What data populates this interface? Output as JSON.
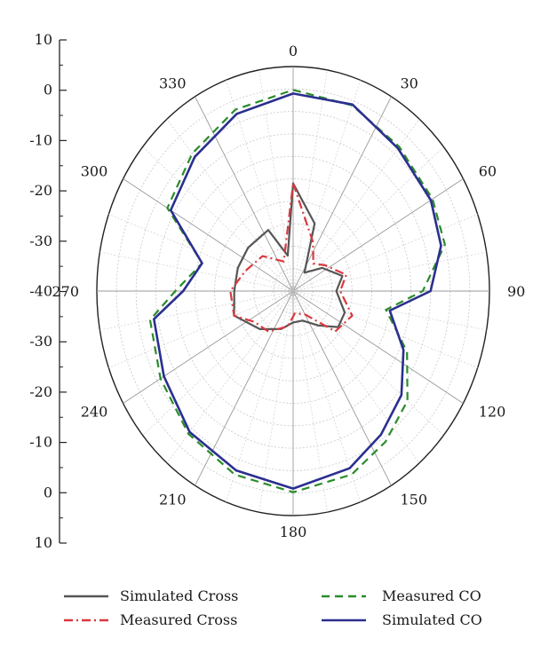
{
  "chart_data": {
    "type": "polar-line",
    "radial_axis": {
      "min": -40,
      "max": 10,
      "ticks": [
        10,
        0,
        -10,
        -20,
        -30,
        -40,
        -30,
        -20,
        -10,
        0,
        10
      ],
      "tick_labels": [
        "10",
        "0",
        "-10",
        "-20",
        "-30",
        "-40",
        "-30",
        "-20",
        "-10",
        "0",
        "10"
      ]
    },
    "angle_labels": [
      "0",
      "30",
      "60",
      "90",
      "120",
      "150",
      "180",
      "210",
      "240",
      "270",
      "300",
      "330"
    ],
    "angle_values": [
      0,
      30,
      60,
      90,
      120,
      150,
      180,
      210,
      240,
      270,
      300,
      330
    ],
    "grid": true,
    "legend_position": "bottom",
    "series": [
      {
        "name": "Simulated Cross",
        "color": "#555555",
        "dash": "solid",
        "points": [
          [
            0,
            -16
          ],
          [
            20,
            -24
          ],
          [
            35,
            -35
          ],
          [
            55,
            -31
          ],
          [
            75,
            -27
          ],
          [
            90,
            -29
          ],
          [
            110,
            -26
          ],
          [
            125,
            -26
          ],
          [
            140,
            -30
          ],
          [
            160,
            -33
          ],
          [
            180,
            -33
          ],
          [
            200,
            -31
          ],
          [
            225,
            -28
          ],
          [
            250,
            -24
          ],
          [
            270,
            -25
          ],
          [
            290,
            -25
          ],
          [
            310,
            -25
          ],
          [
            335,
            -25
          ],
          [
            350,
            -32
          ],
          [
            360,
            -16
          ]
        ]
      },
      {
        "name": "Measured Cross",
        "color": "#d9393e",
        "dash": "dashdot",
        "points": [
          [
            0,
            -16
          ],
          [
            25,
            -28
          ],
          [
            40,
            -32
          ],
          [
            55,
            -30
          ],
          [
            75,
            -26
          ],
          [
            90,
            -28
          ],
          [
            110,
            -24
          ],
          [
            130,
            -26
          ],
          [
            150,
            -34
          ],
          [
            175,
            -35
          ],
          [
            190,
            -32
          ],
          [
            215,
            -29
          ],
          [
            235,
            -28
          ],
          [
            250,
            -24
          ],
          [
            270,
            -24
          ],
          [
            290,
            -27
          ],
          [
            315,
            -29
          ],
          [
            340,
            -33
          ],
          [
            360,
            -16
          ]
        ]
      },
      {
        "name": "Measured CO",
        "color": "#2a8c2a",
        "dash": "dashed",
        "points": [
          [
            0,
            4.8
          ],
          [
            20,
            4
          ],
          [
            40,
            2
          ],
          [
            60,
            1
          ],
          [
            75,
            0
          ],
          [
            90,
            -7
          ],
          [
            100,
            -16
          ],
          [
            115,
            -8
          ],
          [
            130,
            -2
          ],
          [
            145,
            1
          ],
          [
            160,
            3.5
          ],
          [
            180,
            4.8
          ],
          [
            200,
            3.5
          ],
          [
            220,
            1.5
          ],
          [
            240,
            -1
          ],
          [
            260,
            -3
          ],
          [
            270,
            -10
          ],
          [
            285,
            -16
          ],
          [
            300,
            -3
          ],
          [
            320,
            0
          ],
          [
            340,
            3
          ],
          [
            360,
            4.8
          ]
        ]
      },
      {
        "name": "Simulated CO",
        "color": "#2b2f8f",
        "dash": "solid",
        "points": [
          [
            0,
            4
          ],
          [
            20,
            4.2
          ],
          [
            40,
            1.5
          ],
          [
            60,
            0.5
          ],
          [
            75,
            -1
          ],
          [
            90,
            -5
          ],
          [
            100,
            -15
          ],
          [
            115,
            -9
          ],
          [
            130,
            -4
          ],
          [
            145,
            -1
          ],
          [
            160,
            2
          ],
          [
            180,
            4
          ],
          [
            200,
            2.5
          ],
          [
            220,
            1
          ],
          [
            240,
            -2
          ],
          [
            260,
            -4
          ],
          [
            270,
            -12
          ],
          [
            285,
            -16
          ],
          [
            300,
            -4
          ],
          [
            320,
            -1
          ],
          [
            340,
            2
          ],
          [
            360,
            4
          ]
        ]
      }
    ]
  },
  "legend": [
    {
      "label": "Simulated Cross",
      "color": "#555555",
      "dash": "solid"
    },
    {
      "label": "Measured CO",
      "color": "#2a8c2a",
      "dash": "dashed"
    },
    {
      "label": "Measured Cross",
      "color": "#d9393e",
      "dash": "dashdot"
    },
    {
      "label": "Simulated CO",
      "color": "#2b2f8f",
      "dash": "solid"
    }
  ]
}
